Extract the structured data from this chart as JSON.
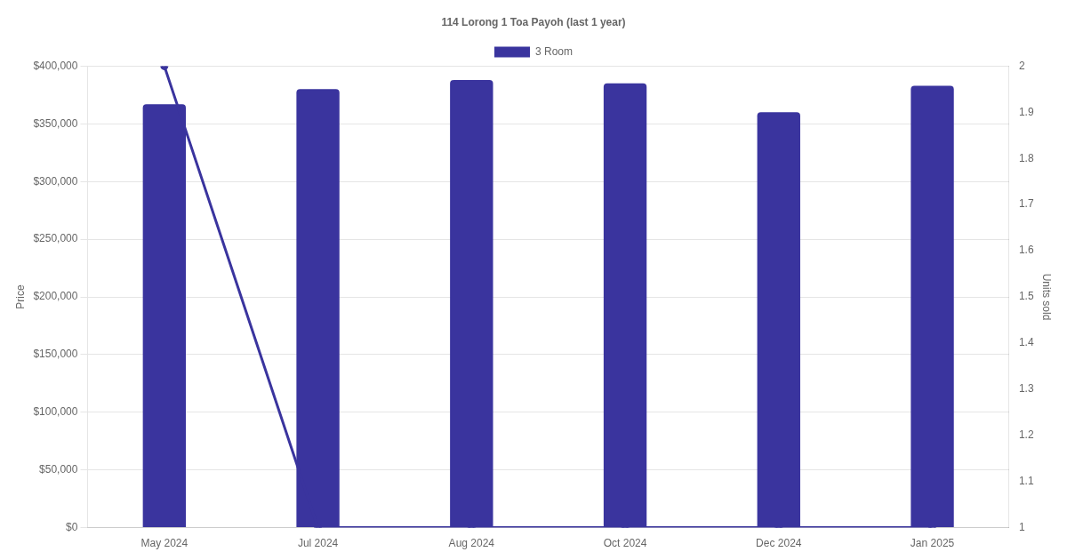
{
  "chart_data": {
    "type": "bar",
    "title": "114 Lorong 1 Toa Payoh (last 1 year)",
    "ylabel": "Price",
    "y2label": "Units sold",
    "categories": [
      "May 2024",
      "Jul 2024",
      "Aug 2024",
      "Oct 2024",
      "Dec 2024",
      "Jan 2025"
    ],
    "series": [
      {
        "name": "3 Room",
        "color": "#3a349e",
        "values": [
          367000,
          380000,
          388000,
          385000,
          360000,
          383000
        ]
      },
      {
        "type": "line",
        "axis": "y2",
        "color": "#3a349e",
        "values": [
          2,
          1,
          1,
          1,
          1,
          1
        ]
      }
    ],
    "ylim": [
      0,
      400000
    ],
    "yticks": [
      {
        "value": 0,
        "label": "$0"
      },
      {
        "value": 50000,
        "label": "$50,000"
      },
      {
        "value": 100000,
        "label": "$100,000"
      },
      {
        "value": 150000,
        "label": "$150,000"
      },
      {
        "value": 200000,
        "label": "$200,000"
      },
      {
        "value": 250000,
        "label": "$250,000"
      },
      {
        "value": 300000,
        "label": "$300,000"
      },
      {
        "value": 350000,
        "label": "$350,000"
      },
      {
        "value": 400000,
        "label": "$400,000"
      }
    ],
    "y2lim": [
      1,
      2
    ],
    "y2ticks": [
      1,
      1.1,
      1.2,
      1.3,
      1.4,
      1.5,
      1.6,
      1.7,
      1.8,
      1.9,
      2
    ],
    "grid": "y",
    "legend": "top",
    "marker": "circle",
    "line_style": "solid"
  }
}
